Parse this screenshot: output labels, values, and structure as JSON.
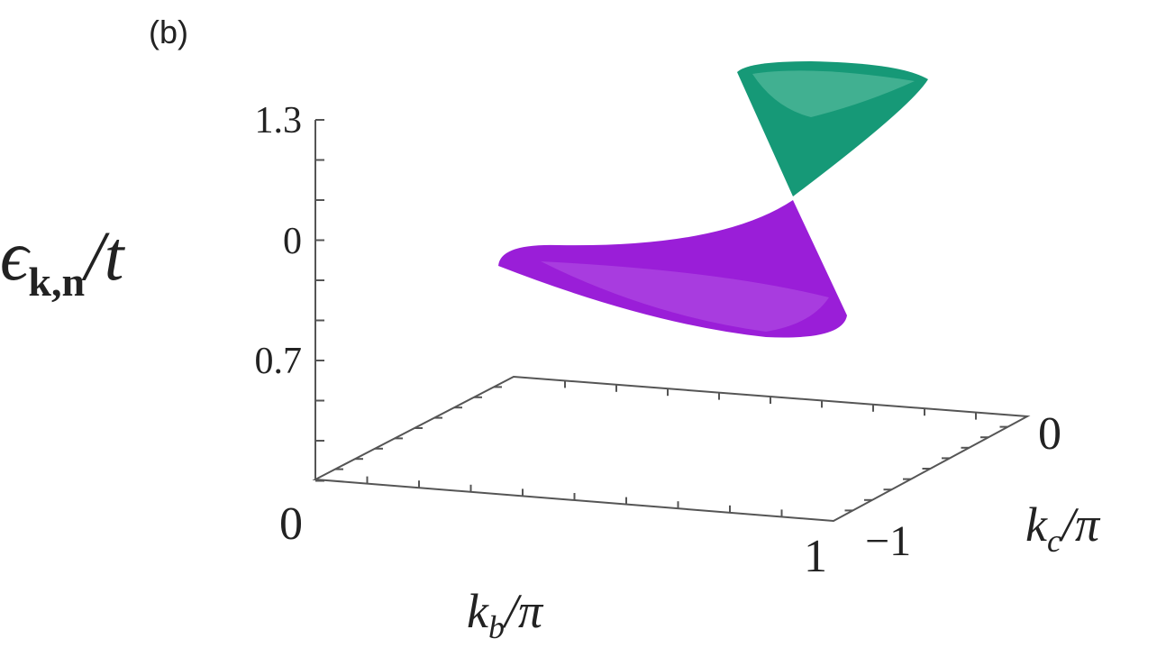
{
  "panel_label": "(b)",
  "z_axis": {
    "label": {
      "symbol": "ϵ",
      "subscript": "k,n",
      "rest": "/t"
    },
    "ticks": [
      "1.3",
      "0",
      "0.7"
    ]
  },
  "b_axis": {
    "label": {
      "symbol": "k",
      "subscript": "b",
      "rest": "/π"
    },
    "ticks": [
      "0",
      "1"
    ]
  },
  "c_axis": {
    "label": {
      "symbol": "k",
      "subscript": "c",
      "rest": "/π"
    },
    "ticks": [
      "−1",
      "0"
    ]
  }
}
